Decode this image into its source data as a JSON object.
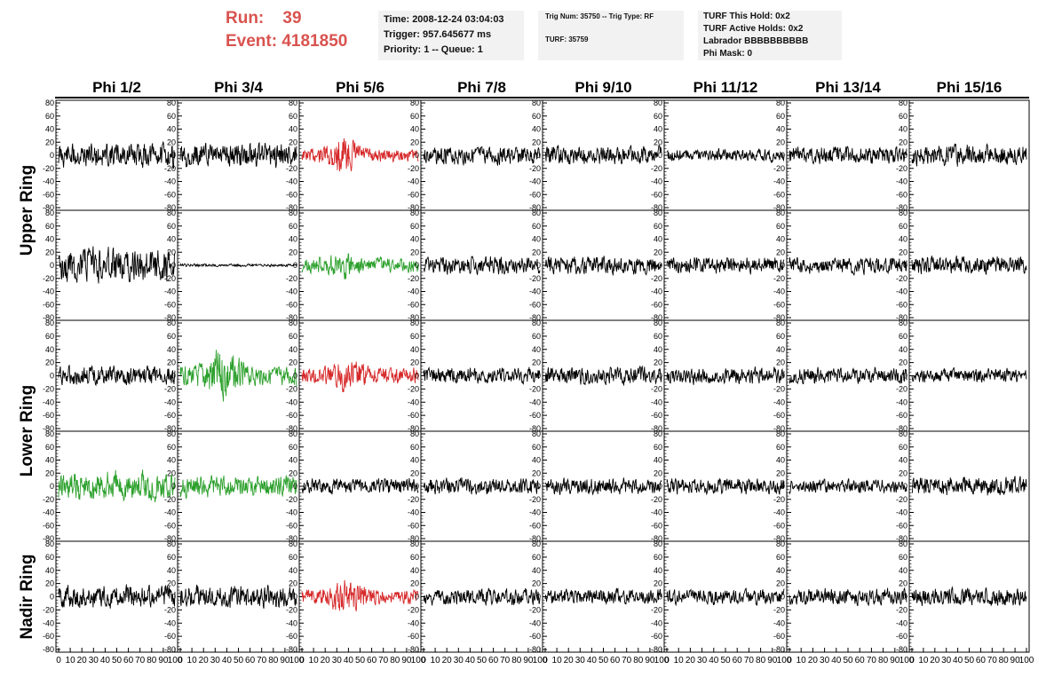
{
  "header": {
    "run_label": "Run:",
    "run_value": "39",
    "event_label": "Event:",
    "event_value": "4181850",
    "time": "Time: 2008-12-24 03:04:03",
    "trigger": "Trigger: 957.645677 ms",
    "priority": "Priority: 1 -- Queue: 1",
    "trig_line": "Trig Num: 35750 -- Trig Type: RF",
    "turf_num": "TURF: 35759",
    "turf_this_hold": "TURF This Hold: 0x2",
    "turf_active_holds": "TURF Active Holds: 0x2",
    "labrador": "Labrador BBBBBBBBBB",
    "phi_mask": "Phi Mask: 0"
  },
  "colors": {
    "header_red": "#d9534f",
    "trace_black": "#000000",
    "trace_red": "#d62728",
    "trace_green": "#2ca02c"
  },
  "chart_data": {
    "type": "line",
    "columns": [
      "Phi 1/2",
      "Phi 3/4",
      "Phi 5/6",
      "Phi 7/8",
      "Phi 9/10",
      "Phi 11/12",
      "Phi 13/14",
      "Phi 15/16"
    ],
    "ring_labels": [
      {
        "label": "Upper Ring",
        "rows": [
          0,
          1
        ]
      },
      {
        "label": "Lower Ring",
        "rows": [
          2,
          3
        ]
      },
      {
        "label": "Nadir Ring",
        "rows": [
          4
        ]
      }
    ],
    "ylim": [
      -80,
      80
    ],
    "yticks": [
      -80,
      -60,
      -40,
      -20,
      0,
      20,
      40,
      60,
      80
    ],
    "xlim": [
      0,
      100
    ],
    "xticks": [
      0,
      10,
      20,
      30,
      40,
      50,
      60,
      70,
      80,
      90,
      100
    ],
    "grid": false,
    "samples": 260,
    "panels": [
      [
        {
          "color": "black",
          "amp": 18,
          "seed": 11,
          "burst": null
        },
        {
          "color": "black",
          "amp": 18,
          "seed": 12,
          "burst": null
        },
        {
          "color": "red",
          "amp": 9,
          "seed": 13,
          "burst": {
            "center": 35,
            "width": 15,
            "gain": 3.2
          }
        },
        {
          "color": "black",
          "amp": 13,
          "seed": 14,
          "burst": null
        },
        {
          "color": "black",
          "amp": 13,
          "seed": 15,
          "burst": null
        },
        {
          "color": "black",
          "amp": 9,
          "seed": 16,
          "burst": null
        },
        {
          "color": "black",
          "amp": 13,
          "seed": 17,
          "burst": null
        },
        {
          "color": "black",
          "amp": 15,
          "seed": 18,
          "burst": null
        }
      ],
      [
        {
          "color": "black",
          "amp": 25,
          "seed": 21,
          "burst": null
        },
        {
          "color": "black",
          "amp": 2,
          "seed": 22,
          "burst": null
        },
        {
          "color": "green",
          "amp": 11,
          "seed": 23,
          "burst": {
            "center": 35,
            "width": 15,
            "gain": 1.8
          }
        },
        {
          "color": "black",
          "amp": 13,
          "seed": 24,
          "burst": null
        },
        {
          "color": "black",
          "amp": 13,
          "seed": 25,
          "burst": null
        },
        {
          "color": "black",
          "amp": 12,
          "seed": 26,
          "burst": null
        },
        {
          "color": "black",
          "amp": 12,
          "seed": 27,
          "burst": null
        },
        {
          "color": "black",
          "amp": 13,
          "seed": 28,
          "burst": null
        }
      ],
      [
        {
          "color": "black",
          "amp": 14,
          "seed": 31,
          "burst": null
        },
        {
          "color": "green",
          "amp": 14,
          "seed": 32,
          "burst": {
            "center": 35,
            "width": 15,
            "gain": 3.0
          }
        },
        {
          "color": "red",
          "amp": 12,
          "seed": 33,
          "burst": {
            "center": 40,
            "width": 15,
            "gain": 2.0
          }
        },
        {
          "color": "black",
          "amp": 12,
          "seed": 34,
          "burst": null
        },
        {
          "color": "black",
          "amp": 13,
          "seed": 35,
          "burst": null
        },
        {
          "color": "black",
          "amp": 12,
          "seed": 36,
          "burst": null
        },
        {
          "color": "black",
          "amp": 12,
          "seed": 37,
          "burst": null
        },
        {
          "color": "black",
          "amp": 10,
          "seed": 38,
          "burst": null
        }
      ],
      [
        {
          "color": "green",
          "amp": 22,
          "seed": 41,
          "burst": null
        },
        {
          "color": "green",
          "amp": 16,
          "seed": 42,
          "burst": null
        },
        {
          "color": "black",
          "amp": 11,
          "seed": 43,
          "burst": null
        },
        {
          "color": "black",
          "amp": 12,
          "seed": 44,
          "burst": null
        },
        {
          "color": "black",
          "amp": 12,
          "seed": 45,
          "burst": null
        },
        {
          "color": "black",
          "amp": 12,
          "seed": 46,
          "burst": null
        },
        {
          "color": "black",
          "amp": 10,
          "seed": 47,
          "burst": null
        },
        {
          "color": "black",
          "amp": 15,
          "seed": 48,
          "burst": null
        }
      ],
      [
        {
          "color": "black",
          "amp": 16,
          "seed": 51,
          "burst": null
        },
        {
          "color": "black",
          "amp": 16,
          "seed": 52,
          "burst": null
        },
        {
          "color": "red",
          "amp": 11,
          "seed": 53,
          "burst": {
            "center": 40,
            "width": 15,
            "gain": 2.4
          }
        },
        {
          "color": "black",
          "amp": 12,
          "seed": 54,
          "burst": null
        },
        {
          "color": "black",
          "amp": 11,
          "seed": 55,
          "burst": null
        },
        {
          "color": "black",
          "amp": 11,
          "seed": 56,
          "burst": null
        },
        {
          "color": "black",
          "amp": 12,
          "seed": 57,
          "burst": null
        },
        {
          "color": "black",
          "amp": 13,
          "seed": 58,
          "burst": null
        }
      ]
    ]
  }
}
